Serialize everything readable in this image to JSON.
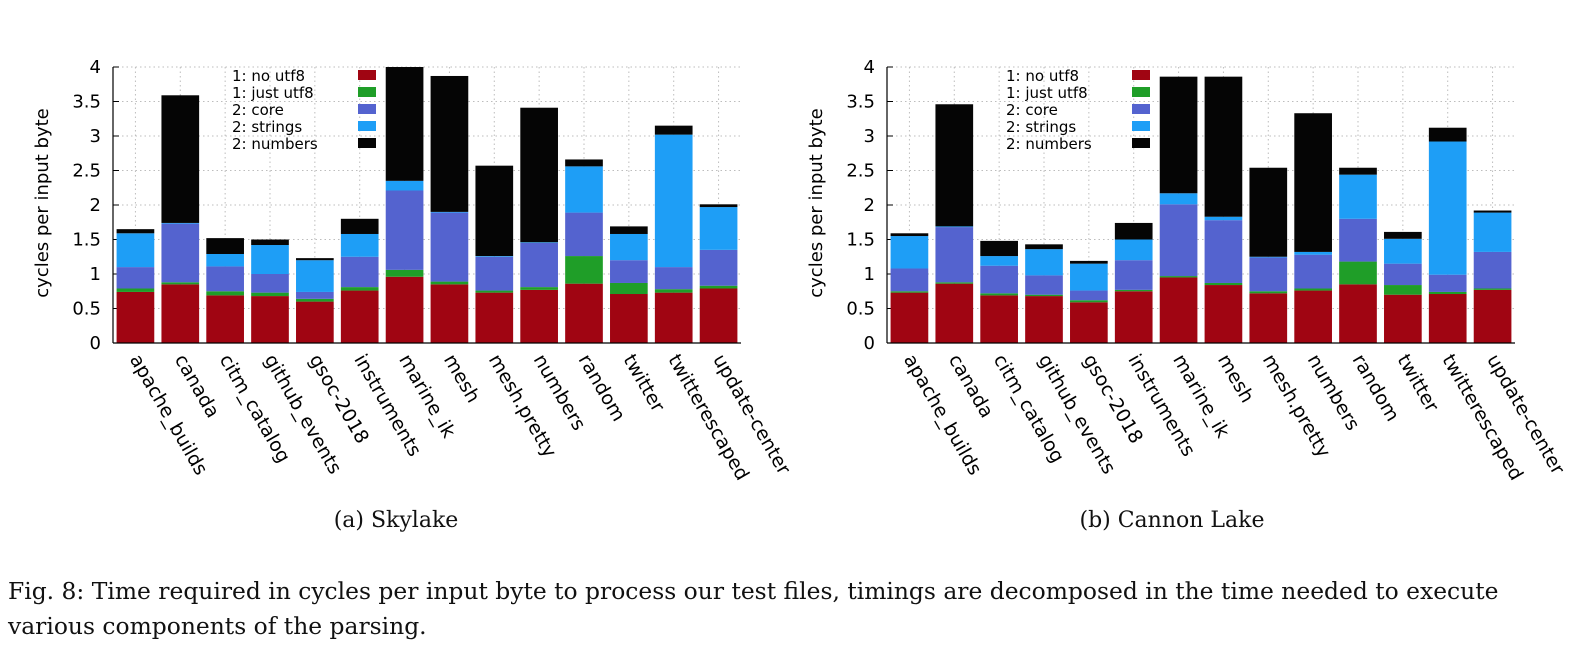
{
  "colors": {
    "1: no utf8": "#a00512",
    "1: just utf8": "#1f9e28",
    "2: core": "#5463cf",
    "2: strings": "#1e9ef6",
    "2: numbers": "#050505"
  },
  "chart_data": [
    {
      "type": "bar",
      "stacked": true,
      "caption": "(a) Skylake",
      "ylabel": "cycles per input byte",
      "ylim": [
        0,
        4
      ],
      "yticks": [
        "0",
        "0.5",
        "1",
        "1.5",
        "2",
        "2.5",
        "3",
        "3.5",
        "4"
      ],
      "grid": true,
      "legend_position": "top-left",
      "categories": [
        "apache_builds",
        "canada",
        "citm_catalog",
        "github_events",
        "gsoc-2018",
        "instruments",
        "marine_ik",
        "mesh",
        "mesh.pretty",
        "numbers",
        "random",
        "twitter",
        "twitterescaped",
        "update-center"
      ],
      "series": [
        {
          "name": "1: no utf8",
          "values": [
            0.74,
            0.85,
            0.69,
            0.68,
            0.6,
            0.76,
            0.96,
            0.85,
            0.73,
            0.77,
            0.86,
            0.71,
            0.73,
            0.79
          ]
        },
        {
          "name": "1: just utf8",
          "values": [
            0.05,
            0.03,
            0.06,
            0.05,
            0.04,
            0.05,
            0.1,
            0.04,
            0.03,
            0.04,
            0.4,
            0.16,
            0.05,
            0.04
          ]
        },
        {
          "name": "2: core",
          "values": [
            0.31,
            0.85,
            0.36,
            0.27,
            0.1,
            0.44,
            1.15,
            1.0,
            0.49,
            0.64,
            0.63,
            0.33,
            0.32,
            0.52
          ]
        },
        {
          "name": "2: strings",
          "values": [
            0.49,
            0.01,
            0.18,
            0.42,
            0.46,
            0.33,
            0.14,
            0.01,
            0.01,
            0.01,
            0.67,
            0.38,
            1.92,
            0.62
          ]
        },
        {
          "name": "2: numbers",
          "values": [
            0.06,
            1.85,
            0.23,
            0.08,
            0.03,
            0.22,
            1.65,
            1.97,
            1.31,
            1.95,
            0.1,
            0.11,
            0.13,
            0.04
          ]
        }
      ]
    },
    {
      "type": "bar",
      "stacked": true,
      "caption": "(b) Cannon Lake",
      "ylabel": "cycles per input byte",
      "ylim": [
        0,
        4
      ],
      "yticks": [
        "0",
        "0.5",
        "1",
        "1.5",
        "2",
        "2.5",
        "3",
        "3.5",
        "4"
      ],
      "grid": true,
      "legend_position": "top-left",
      "categories": [
        "apache_builds",
        "canada",
        "citm_catalog",
        "github_events",
        "gsoc-2018",
        "instruments",
        "marine_ik",
        "mesh",
        "mesh.pretty",
        "numbers",
        "random",
        "twitter",
        "twitterescaped",
        "update-center"
      ],
      "series": [
        {
          "name": "1: no utf8",
          "values": [
            0.73,
            0.86,
            0.69,
            0.68,
            0.59,
            0.75,
            0.95,
            0.84,
            0.72,
            0.76,
            0.85,
            0.7,
            0.71,
            0.77
          ]
        },
        {
          "name": "1: just utf8",
          "values": [
            0.02,
            0.02,
            0.03,
            0.02,
            0.03,
            0.02,
            0.02,
            0.03,
            0.03,
            0.03,
            0.33,
            0.14,
            0.03,
            0.02
          ]
        },
        {
          "name": "2: core",
          "values": [
            0.33,
            0.8,
            0.4,
            0.28,
            0.14,
            0.43,
            1.04,
            0.91,
            0.49,
            0.49,
            0.62,
            0.31,
            0.25,
            0.53
          ]
        },
        {
          "name": "2: strings",
          "values": [
            0.47,
            0.01,
            0.14,
            0.38,
            0.39,
            0.3,
            0.16,
            0.05,
            0.01,
            0.04,
            0.64,
            0.36,
            1.93,
            0.57
          ]
        },
        {
          "name": "2: numbers",
          "values": [
            0.04,
            1.77,
            0.22,
            0.07,
            0.04,
            0.24,
            1.69,
            2.03,
            1.29,
            2.01,
            0.1,
            0.1,
            0.2,
            0.03
          ]
        }
      ]
    }
  ],
  "figure": {
    "caption": "Fig. 8: Time required in cycles per input byte to process our test files, timings are decomposed in the time needed to execute various components of the parsing."
  }
}
